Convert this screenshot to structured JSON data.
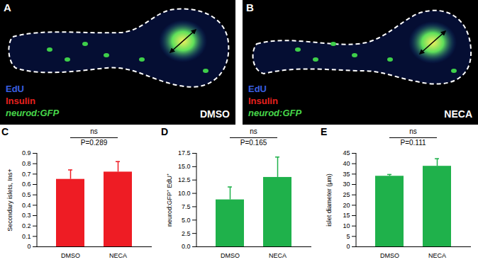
{
  "image_panels": [
    {
      "panel": "A",
      "condition": "DMSO",
      "legend": [
        {
          "text": "EdU",
          "color": "#3a5fe0"
        },
        {
          "text": "Insulin",
          "color": "#e8201e"
        },
        {
          "text": "neurod:GFP",
          "color": "#47d64a"
        }
      ]
    },
    {
      "panel": "B",
      "condition": "NECA",
      "legend": [
        {
          "text": "EdU",
          "color": "#3a5fe0"
        },
        {
          "text": "Insulin",
          "color": "#e8201e"
        },
        {
          "text": "neurod:GFP",
          "color": "#47d64a"
        }
      ]
    }
  ],
  "chart_data": [
    {
      "type": "bar",
      "panel": "C",
      "categories": [
        "DMSO",
        "NECA"
      ],
      "values": [
        0.65,
        0.72
      ],
      "errors": [
        0.09,
        0.1
      ],
      "color": "#ee1c24",
      "y_label": "Secondary islets, Ins+",
      "ylim": [
        0,
        0.9
      ],
      "yticks": [
        0,
        0.1,
        0.2,
        0.3,
        0.4,
        0.5,
        0.6,
        0.7,
        0.8,
        0.9
      ],
      "annotations": [
        "ns",
        "P=0.289"
      ]
    },
    {
      "type": "bar",
      "panel": "D",
      "categories": [
        "DMSO",
        "NECA"
      ],
      "values": [
        8.8,
        13.0
      ],
      "errors": [
        2.4,
        3.8
      ],
      "color": "#1fb14b",
      "y_label": "neurod:GFP⁺ EdU⁺",
      "ylim": [
        0,
        17.5
      ],
      "yticks": [
        {
          "value": 0,
          "label": "0.0"
        },
        2.5,
        {
          "value": 5,
          "label": "5.0"
        },
        7.5,
        {
          "value": 10,
          "label": "10.0"
        },
        12.5,
        {
          "value": 15,
          "label": "15.0"
        },
        17.5
      ],
      "annotations": [
        "ns",
        "P=0.165"
      ]
    },
    {
      "type": "bar",
      "panel": "E",
      "categories": [
        "DMSO",
        "NECA"
      ],
      "values": [
        34.0,
        38.8
      ],
      "errors": [
        0.8,
        3.6
      ],
      "color": "#1fb14b",
      "y_label": "islet diameter (μm)",
      "ylim": [
        0,
        45
      ],
      "yticks": [
        0,
        5,
        10,
        15,
        20,
        25,
        30,
        35,
        40,
        45
      ],
      "annotations": [
        "ns",
        "P=0.111"
      ]
    }
  ]
}
